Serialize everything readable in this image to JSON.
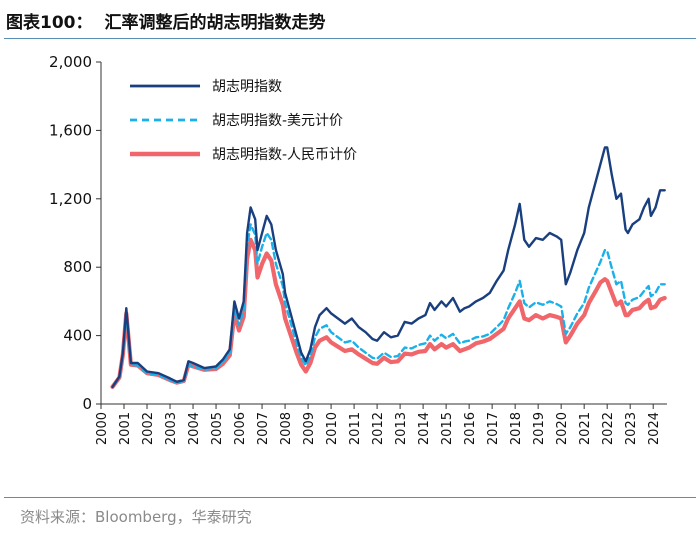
{
  "title": {
    "label": "图表100：",
    "text": "汇率调整后的胡志明指数走势"
  },
  "source": "资料来源：Bloomberg，华泰研究",
  "colors": {
    "vnd": "#1a3f7e",
    "usd": "#1ab0e8",
    "cny": "#f0666a",
    "rule": "#5a8fb5",
    "axis": "#333333"
  },
  "chart_data": {
    "type": "line",
    "title": "汇率调整后的胡志明指数走势",
    "xlabel": "",
    "ylabel": "",
    "ylim": [
      0,
      2000
    ],
    "xlim": [
      2000,
      2024.6
    ],
    "yticks": [
      0,
      400,
      800,
      1200,
      1600,
      2000
    ],
    "ytick_labels": [
      "0",
      "400",
      "800",
      "1,200",
      "1,600",
      "2,000"
    ],
    "xtick_labels": [
      "2000",
      "2001",
      "2002",
      "2003",
      "2004",
      "2005",
      "2006",
      "2007",
      "2008",
      "2009",
      "2010",
      "2011",
      "2012",
      "2013",
      "2014",
      "2015",
      "2016",
      "2017",
      "2018",
      "2019",
      "2020",
      "2021",
      "2022",
      "2023",
      "2024"
    ],
    "legend_position": "top-left",
    "series": [
      {
        "name": "胡志明指数",
        "style": "solid",
        "x": [
          2000.5,
          2000.8,
          2000.95,
          2001.1,
          2001.3,
          2001.6,
          2002.0,
          2002.5,
          2003.0,
          2003.3,
          2003.6,
          2003.8,
          2004.0,
          2004.5,
          2005.0,
          2005.3,
          2005.6,
          2005.8,
          2006.0,
          2006.2,
          2006.35,
          2006.5,
          2006.7,
          2006.8,
          2007.0,
          2007.2,
          2007.4,
          2007.6,
          2007.9,
          2008.0,
          2008.3,
          2008.5,
          2008.7,
          2008.9,
          2009.1,
          2009.3,
          2009.5,
          2009.8,
          2010.0,
          2010.3,
          2010.6,
          2010.9,
          2011.2,
          2011.5,
          2011.8,
          2012.0,
          2012.3,
          2012.6,
          2012.9,
          2013.2,
          2013.5,
          2013.8,
          2014.1,
          2014.3,
          2014.5,
          2014.8,
          2015.0,
          2015.3,
          2015.6,
          2015.8,
          2016.0,
          2016.3,
          2016.6,
          2016.9,
          2017.2,
          2017.5,
          2017.7,
          2018.0,
          2018.2,
          2018.4,
          2018.6,
          2018.9,
          2019.2,
          2019.5,
          2019.8,
          2020.0,
          2020.2,
          2020.4,
          2020.7,
          2021.0,
          2021.2,
          2021.5,
          2021.7,
          2021.9,
          2022.0,
          2022.2,
          2022.4,
          2022.6,
          2022.8,
          2022.9,
          2023.1,
          2023.4,
          2023.6,
          2023.8,
          2023.9,
          2024.1,
          2024.3,
          2024.5
        ],
        "values": [
          100,
          160,
          300,
          560,
          240,
          240,
          190,
          180,
          150,
          130,
          140,
          250,
          240,
          210,
          220,
          260,
          320,
          600,
          500,
          600,
          1000,
          1150,
          1080,
          900,
          1000,
          1100,
          1050,
          900,
          760,
          650,
          500,
          400,
          300,
          250,
          320,
          450,
          520,
          560,
          530,
          500,
          470,
          500,
          450,
          420,
          380,
          370,
          420,
          390,
          400,
          480,
          470,
          500,
          520,
          590,
          550,
          600,
          570,
          620,
          540,
          560,
          570,
          600,
          620,
          650,
          720,
          780,
          900,
          1050,
          1170,
          960,
          920,
          970,
          960,
          1000,
          980,
          960,
          700,
          770,
          900,
          1000,
          1150,
          1300,
          1400,
          1500,
          1500,
          1340,
          1200,
          1230,
          1020,
          1000,
          1050,
          1080,
          1150,
          1200,
          1100,
          1150,
          1250,
          1250
        ]
      },
      {
        "name": "胡志明指数-美元计价",
        "style": "dashed",
        "x": [
          2000.5,
          2000.8,
          2000.95,
          2001.1,
          2001.3,
          2001.6,
          2002.0,
          2002.5,
          2003.0,
          2003.3,
          2003.6,
          2003.8,
          2004.0,
          2004.5,
          2005.0,
          2005.3,
          2005.6,
          2005.8,
          2006.0,
          2006.2,
          2006.35,
          2006.5,
          2006.7,
          2006.8,
          2007.0,
          2007.2,
          2007.4,
          2007.6,
          2007.9,
          2008.0,
          2008.3,
          2008.5,
          2008.7,
          2008.9,
          2009.1,
          2009.3,
          2009.5,
          2009.8,
          2010.0,
          2010.3,
          2010.6,
          2010.9,
          2011.2,
          2011.5,
          2011.8,
          2012.0,
          2012.3,
          2012.6,
          2012.9,
          2013.2,
          2013.5,
          2013.8,
          2014.1,
          2014.3,
          2014.5,
          2014.8,
          2015.0,
          2015.3,
          2015.6,
          2015.8,
          2016.0,
          2016.3,
          2016.6,
          2016.9,
          2017.2,
          2017.5,
          2017.7,
          2018.0,
          2018.2,
          2018.4,
          2018.6,
          2018.9,
          2019.2,
          2019.5,
          2019.8,
          2020.0,
          2020.2,
          2020.4,
          2020.7,
          2021.0,
          2021.2,
          2021.5,
          2021.7,
          2021.9,
          2022.0,
          2022.2,
          2022.4,
          2022.6,
          2022.8,
          2022.9,
          2023.1,
          2023.4,
          2023.6,
          2023.8,
          2023.9,
          2024.1,
          2024.3,
          2024.5
        ],
        "values": [
          100,
          155,
          290,
          530,
          230,
          225,
          180,
          170,
          140,
          125,
          135,
          230,
          220,
          200,
          210,
          245,
          300,
          560,
          460,
          550,
          920,
          1050,
          990,
          820,
          920,
          1000,
          960,
          820,
          690,
          590,
          450,
          355,
          270,
          225,
          280,
          390,
          440,
          460,
          420,
          390,
          360,
          370,
          330,
          300,
          270,
          265,
          300,
          275,
          280,
          330,
          325,
          345,
          355,
          400,
          370,
          405,
          385,
          410,
          355,
          365,
          370,
          390,
          395,
          410,
          450,
          490,
          560,
          650,
          720,
          590,
          565,
          595,
          580,
          600,
          585,
          570,
          410,
          450,
          530,
          590,
          680,
          770,
          830,
          900,
          895,
          795,
          700,
          720,
          590,
          580,
          610,
          625,
          660,
          690,
          630,
          650,
          700,
          700
        ]
      },
      {
        "name": "胡志明指数-人民币计价",
        "style": "solid-thick",
        "x": [
          2000.5,
          2000.8,
          2000.95,
          2001.1,
          2001.3,
          2001.6,
          2002.0,
          2002.5,
          2003.0,
          2003.3,
          2003.6,
          2003.8,
          2004.0,
          2004.5,
          2005.0,
          2005.3,
          2005.6,
          2005.8,
          2006.0,
          2006.2,
          2006.35,
          2006.5,
          2006.7,
          2006.8,
          2007.0,
          2007.2,
          2007.4,
          2007.6,
          2007.9,
          2008.0,
          2008.3,
          2008.5,
          2008.7,
          2008.9,
          2009.1,
          2009.3,
          2009.5,
          2009.8,
          2010.0,
          2010.3,
          2010.6,
          2010.9,
          2011.2,
          2011.5,
          2011.8,
          2012.0,
          2012.3,
          2012.6,
          2012.9,
          2013.2,
          2013.5,
          2013.8,
          2014.1,
          2014.3,
          2014.5,
          2014.8,
          2015.0,
          2015.3,
          2015.6,
          2015.8,
          2016.0,
          2016.3,
          2016.6,
          2016.9,
          2017.2,
          2017.5,
          2017.7,
          2018.0,
          2018.2,
          2018.4,
          2018.6,
          2018.9,
          2019.2,
          2019.5,
          2019.8,
          2020.0,
          2020.2,
          2020.4,
          2020.7,
          2021.0,
          2021.2,
          2021.5,
          2021.7,
          2021.9,
          2022.0,
          2022.2,
          2022.4,
          2022.6,
          2022.8,
          2022.9,
          2023.1,
          2023.4,
          2023.6,
          2023.8,
          2023.9,
          2024.1,
          2024.3,
          2024.5
        ],
        "values": [
          100,
          155,
          290,
          530,
          230,
          225,
          180,
          170,
          140,
          125,
          135,
          230,
          220,
          200,
          205,
          235,
          285,
          530,
          430,
          510,
          850,
          960,
          900,
          740,
          820,
          880,
          840,
          700,
          580,
          500,
          380,
          300,
          230,
          190,
          240,
          330,
          370,
          390,
          360,
          335,
          310,
          320,
          290,
          265,
          240,
          235,
          270,
          245,
          250,
          295,
          290,
          305,
          310,
          350,
          320,
          350,
          330,
          350,
          310,
          320,
          330,
          355,
          365,
          380,
          410,
          440,
          500,
          560,
          600,
          500,
          490,
          520,
          500,
          520,
          510,
          500,
          360,
          400,
          470,
          520,
          590,
          660,
          710,
          730,
          720,
          650,
          580,
          600,
          520,
          520,
          550,
          560,
          590,
          610,
          560,
          570,
          610,
          620
        ]
      }
    ]
  }
}
